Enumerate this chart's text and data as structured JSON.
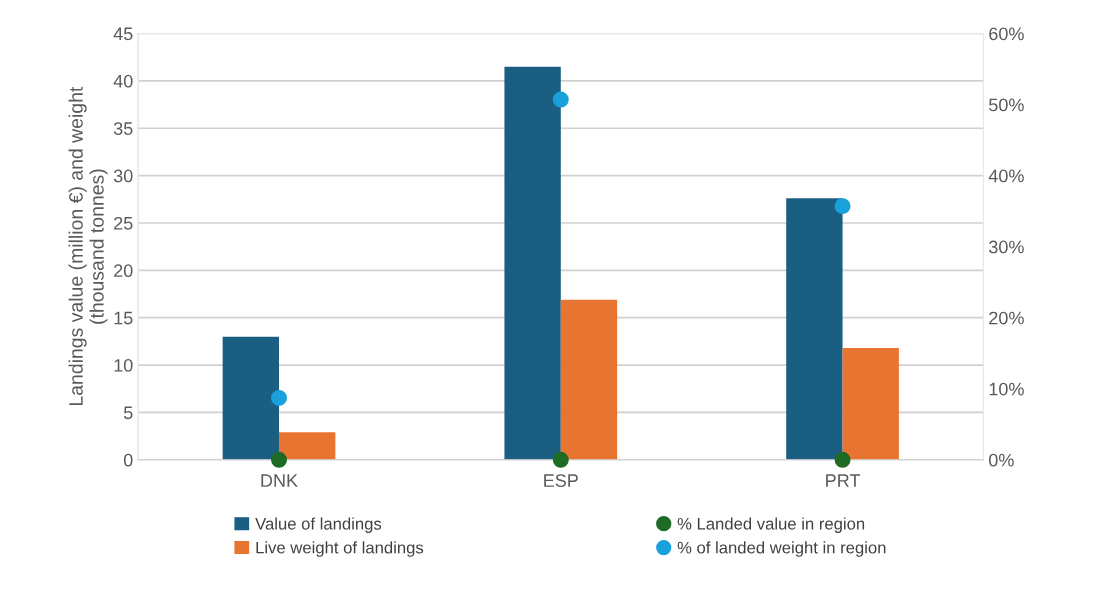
{
  "chart_data": {
    "type": "bar",
    "categories": [
      "DNK",
      "ESP",
      "PRT"
    ],
    "ylabel": "Landings value (million €) and weight\n(thousand tonnes)",
    "ylim": [
      0,
      45
    ],
    "yticks": [
      0,
      5,
      10,
      15,
      20,
      25,
      30,
      35,
      40,
      45
    ],
    "y2lim": [
      0,
      60
    ],
    "y2ticks": [
      {
        "value": 0,
        "label": "0%"
      },
      {
        "value": 10,
        "label": "10%"
      },
      {
        "value": 20,
        "label": "20%"
      },
      {
        "value": 30,
        "label": "30%"
      },
      {
        "value": 40,
        "label": "40%"
      },
      {
        "value": 50,
        "label": "50%"
      },
      {
        "value": 60,
        "label": "60%"
      }
    ],
    "grid": "y",
    "legend": "bottom",
    "marker": "circle",
    "series": [
      {
        "name": "Value of landings",
        "color": "#1a5f82",
        "values": [
          13,
          41.5,
          27.6
        ]
      },
      {
        "name": "Live weight of landings",
        "color": "#e87431",
        "values": [
          2.9,
          16.9,
          11.8
        ]
      },
      {
        "name": "% Landed value in region",
        "type": "scatter",
        "axis": "y2",
        "color": "#1e6b25",
        "values": [
          0,
          0,
          0
        ]
      },
      {
        "name": "% of landed weight in region",
        "type": "scatter",
        "axis": "y2",
        "color": "#1aa1dc",
        "values": [
          8.7,
          50.7,
          35.7
        ]
      }
    ]
  }
}
